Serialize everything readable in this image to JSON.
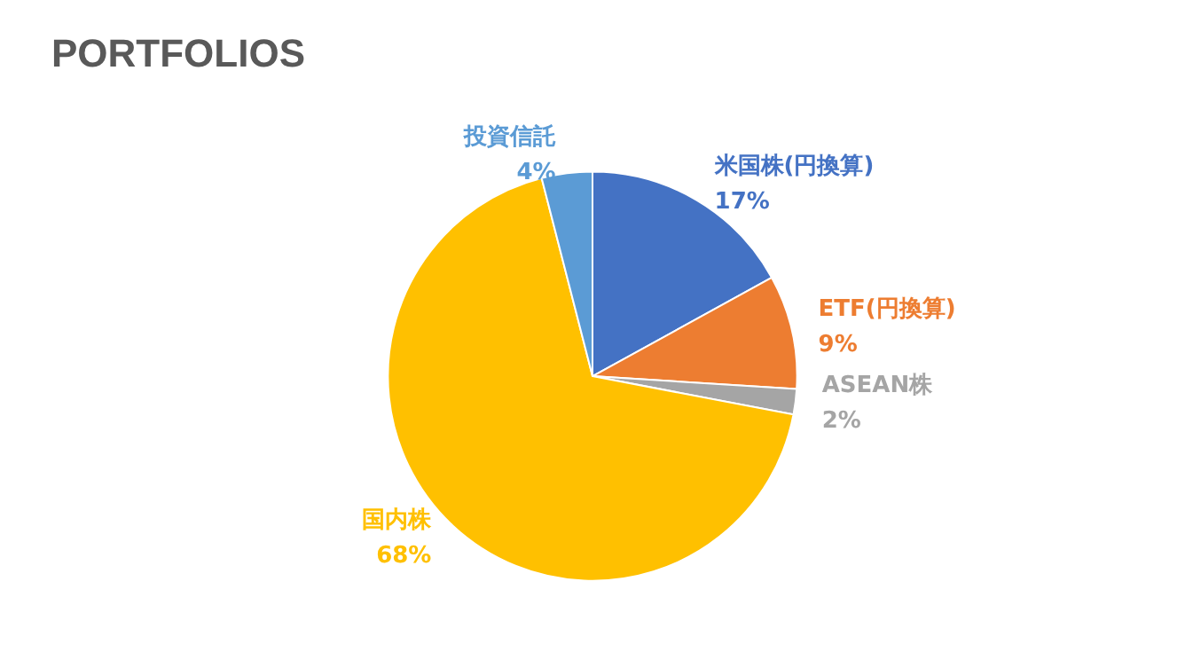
{
  "chart_data": {
    "type": "pie",
    "title": "PORTFOLIOS",
    "categories": [
      "米国株(円換算)",
      "ETF(円換算)",
      "ASEAN株",
      "国内株",
      "投資信託"
    ],
    "values": [
      17,
      9,
      2,
      68,
      4
    ],
    "value_labels": [
      "17%",
      "9%",
      "2%",
      "68%",
      "4%"
    ],
    "colors": [
      "#4472c4",
      "#ed7d31",
      "#a5a5a5",
      "#ffc000",
      "#5b9bd5"
    ],
    "legend": false
  }
}
